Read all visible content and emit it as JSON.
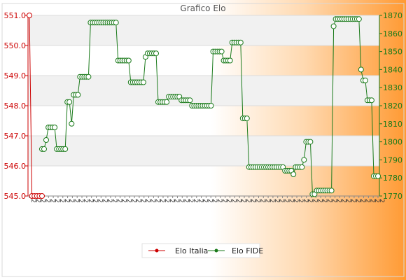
{
  "chart_data": {
    "type": "line",
    "title": "Grafico Elo",
    "left_axis": {
      "series": "Elo Italia",
      "ylim": [
        545.0,
        551.0
      ],
      "ticks": [
        "545.0",
        "546.0",
        "547.0",
        "548.0",
        "549.0",
        "550.0",
        "551.0"
      ],
      "color": "#cc0000"
    },
    "right_axis": {
      "series": "Elo FIDE",
      "ylim": [
        1770,
        1870
      ],
      "ticks": [
        "1770",
        "1780",
        "1790",
        "1800",
        "1810",
        "1820",
        "1830",
        "1840",
        "1850",
        "1860",
        "1870"
      ],
      "color": "#1a7a1a"
    },
    "grid": true,
    "legend": "bottom-center",
    "series": [
      {
        "name": "Elo Italia",
        "axis": "left",
        "color": "#cc0000",
        "values": [
          551.0,
          545.0,
          545.0,
          545.0,
          545.0,
          545.0
        ]
      },
      {
        "name": "Elo FIDE",
        "axis": "right",
        "color": "#1a7a1a",
        "values": [
          1796,
          1796,
          1801,
          1808,
          1808,
          1808,
          1808,
          1796,
          1796,
          1796,
          1796,
          1796,
          1822,
          1822,
          1810,
          1826,
          1826,
          1826,
          1836,
          1836,
          1836,
          1836,
          1836,
          1866,
          1866,
          1866,
          1866,
          1866,
          1866,
          1866,
          1866,
          1866,
          1866,
          1866,
          1866,
          1866,
          1845,
          1845,
          1845,
          1845,
          1845,
          1845,
          1833,
          1833,
          1833,
          1833,
          1833,
          1833,
          1833,
          1847,
          1849,
          1849,
          1849,
          1849,
          1849,
          1822,
          1822,
          1822,
          1822,
          1822,
          1825,
          1825,
          1825,
          1825,
          1825,
          1825,
          1823,
          1823,
          1823,
          1823,
          1823,
          1820,
          1820,
          1820,
          1820,
          1820,
          1820,
          1820,
          1820,
          1820,
          1820,
          1850,
          1850,
          1850,
          1850,
          1850,
          1845,
          1845,
          1845,
          1845,
          1855,
          1855,
          1855,
          1855,
          1855,
          1813,
          1813,
          1813,
          1786,
          1786,
          1786,
          1786,
          1786,
          1786,
          1786,
          1786,
          1786,
          1786,
          1786,
          1786,
          1786,
          1786,
          1786,
          1786,
          1786,
          1784,
          1784,
          1784,
          1784,
          1782,
          1786,
          1786,
          1786,
          1786,
          1790,
          1800,
          1800,
          1800,
          1771,
          1771,
          1773,
          1773,
          1773,
          1773,
          1773,
          1773,
          1773,
          1773,
          1864,
          1868,
          1868,
          1868,
          1868,
          1868,
          1868,
          1868,
          1868,
          1868,
          1868,
          1868,
          1868,
          1840,
          1834,
          1834,
          1823,
          1823,
          1823,
          1781,
          1781,
          1781
        ]
      }
    ],
    "x_tick_label_prefix": "2"
  }
}
